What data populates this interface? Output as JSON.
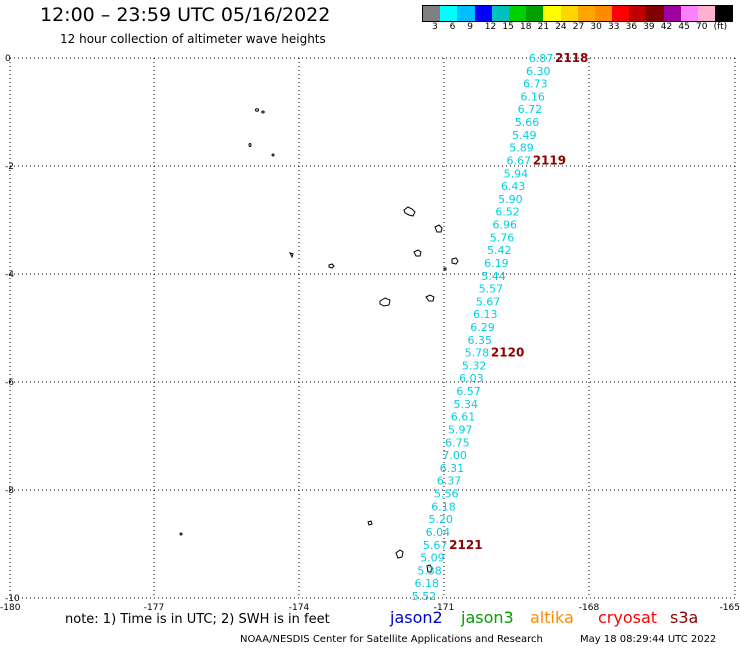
{
  "header": {
    "title": "12:00 – 23:59 UTC 05/16/2022",
    "subtitle": "12 hour collection of altimeter wave heights"
  },
  "colorbar": {
    "colors": [
      "#808080",
      "#00ffff",
      "#00bfff",
      "#0000ff",
      "#00c0c0",
      "#00d000",
      "#00a000",
      "#ffff00",
      "#ffd700",
      "#ffa500",
      "#ff8c00",
      "#ff0000",
      "#c00000",
      "#800000",
      "#a000a0",
      "#ff80ff",
      "#ffb0d0",
      "#000000"
    ],
    "labels": [
      "3",
      "6",
      "9",
      "12",
      "15",
      "18",
      "21",
      "24",
      "27",
      "30",
      "33",
      "36",
      "39",
      "42",
      "45",
      "70",
      "(ft)"
    ]
  },
  "axes": {
    "x_ticks": [
      "-180",
      "-177",
      "-174",
      "-171",
      "-168",
      "-165"
    ],
    "y_ticks": [
      "0",
      "-2",
      "-4",
      "-6",
      "-8",
      "-10"
    ]
  },
  "track": {
    "color": "#00d0e0",
    "labels": [
      "6.87",
      "6.30",
      "6.73",
      "6.16",
      "6.72",
      "5.66",
      "5.49",
      "5.89",
      "6.67",
      "5.94",
      "6.43",
      "5.90",
      "6.52",
      "6.96",
      "5.76",
      "5.42",
      "6.19",
      "5.44",
      "5.57",
      "5.67",
      "6.13",
      "6.29",
      "6.35",
      "5.78",
      "5.32",
      "6.03",
      "6.57",
      "5.34",
      "6.61",
      "5.97",
      "6.75",
      "7.00",
      "6.31",
      "6.37",
      "5.56",
      "6.18",
      "5.20",
      "6.04",
      "5.67",
      "5.09",
      "5.38",
      "6.18",
      "5.52"
    ]
  },
  "time_labels": {
    "color": "#8b0000",
    "items": [
      {
        "text": "2118",
        "after_index": 0
      },
      {
        "text": "2119",
        "after_index": 8
      },
      {
        "text": "2120",
        "after_index": 23
      },
      {
        "text": "2121",
        "after_index": 38
      }
    ]
  },
  "footer": {
    "note": "note:  1) Time is in UTC;  2) SWH is in feet",
    "satellites": [
      "jason2",
      "jason3",
      "altika",
      "cryosat",
      "s3a"
    ],
    "credit": "NOAA/NESDIS Center for Satellite Applications and Research",
    "timestamp": "May 18 08:29:44 UTC 2022"
  }
}
